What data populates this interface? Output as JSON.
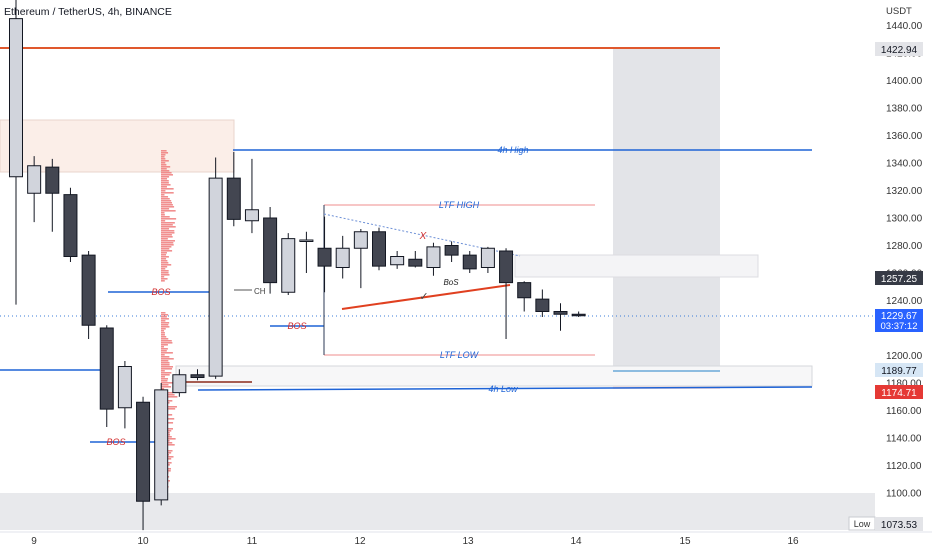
{
  "header": {
    "title": "Ethereum / TetherUS, 4h, BINANCE"
  },
  "axis": {
    "currency": "USDT",
    "low_label": "Low"
  },
  "colors": {
    "bull_body": "#d1d4dc",
    "bear_body": "#434651",
    "wick": "#131722",
    "level_blue": "#1e63d6",
    "level_red": "#e0582d",
    "bos_red": "#d32f2f",
    "ltf_line": "#f0a0a0",
    "zone_peach": "#fbeee8",
    "zone_grey": "#e6e7ea",
    "target_green": "#ffffff"
  },
  "chart_data": {
    "type": "candlestick",
    "symbol": "Ethereum / TetherUS",
    "interval": "4h",
    "exchange": "BINANCE",
    "ylim": [
      1065,
      1455
    ],
    "y_ticks": [
      1100,
      1120,
      1140,
      1160,
      1180,
      1200,
      1220,
      1240,
      1260,
      1280,
      1300,
      1320,
      1340,
      1360,
      1380,
      1400,
      1420,
      1440
    ],
    "x_ticks": [
      "9",
      "10",
      "11",
      "12",
      "13",
      "14",
      "15",
      "16"
    ],
    "candles": [
      {
        "o": 1330,
        "h": 1460,
        "l": 1237,
        "c": 1445
      },
      {
        "o": 1318,
        "h": 1345,
        "l": 1297,
        "c": 1338
      },
      {
        "o": 1337,
        "h": 1343,
        "l": 1290,
        "c": 1318
      },
      {
        "o": 1317,
        "h": 1322,
        "l": 1268,
        "c": 1272
      },
      {
        "o": 1273,
        "h": 1276,
        "l": 1212,
        "c": 1222
      },
      {
        "o": 1220,
        "h": 1222,
        "l": 1148,
        "c": 1161
      },
      {
        "o": 1162,
        "h": 1196,
        "l": 1147,
        "c": 1192
      },
      {
        "o": 1166,
        "h": 1170,
        "l": 1073,
        "c": 1094
      },
      {
        "o": 1095,
        "h": 1180,
        "l": 1091,
        "c": 1175
      },
      {
        "o": 1173,
        "h": 1190,
        "l": 1170,
        "c": 1186
      },
      {
        "o": 1186,
        "h": 1190,
        "l": 1182,
        "c": 1184
      },
      {
        "o": 1185,
        "h": 1344,
        "l": 1183,
        "c": 1329
      },
      {
        "o": 1329,
        "h": 1348,
        "l": 1294,
        "c": 1299
      },
      {
        "o": 1298,
        "h": 1343,
        "l": 1289,
        "c": 1306
      },
      {
        "o": 1300,
        "h": 1308,
        "l": 1245,
        "c": 1253
      },
      {
        "o": 1246,
        "h": 1289,
        "l": 1244,
        "c": 1285
      },
      {
        "o": 1283,
        "h": 1290,
        "l": 1260,
        "c": 1284
      },
      {
        "o": 1278,
        "h": 1301,
        "l": 1246,
        "c": 1265
      },
      {
        "o": 1264,
        "h": 1287,
        "l": 1256,
        "c": 1278
      },
      {
        "o": 1278,
        "h": 1292,
        "l": 1249,
        "c": 1290
      },
      {
        "o": 1290,
        "h": 1293,
        "l": 1262,
        "c": 1265
      },
      {
        "o": 1266,
        "h": 1276,
        "l": 1263,
        "c": 1272
      },
      {
        "o": 1270,
        "h": 1276,
        "l": 1264,
        "c": 1265
      },
      {
        "o": 1264,
        "h": 1282,
        "l": 1258,
        "c": 1279
      },
      {
        "o": 1280,
        "h": 1283,
        "l": 1268,
        "c": 1273
      },
      {
        "o": 1273,
        "h": 1276,
        "l": 1260,
        "c": 1263
      },
      {
        "o": 1264,
        "h": 1279,
        "l": 1260,
        "c": 1278
      },
      {
        "o": 1276,
        "h": 1278,
        "l": 1212,
        "c": 1253
      },
      {
        "o": 1253,
        "h": 1254,
        "l": 1232,
        "c": 1242
      },
      {
        "o": 1241,
        "h": 1248,
        "l": 1228,
        "c": 1232
      },
      {
        "o": 1232,
        "h": 1238,
        "l": 1218,
        "c": 1230
      },
      {
        "o": 1230,
        "h": 1232,
        "l": 1228,
        "c": 1229.67
      }
    ],
    "levels": [
      {
        "label": "4h High",
        "y": 1349
      },
      {
        "label": "LTF HIGH",
        "y": 1309
      },
      {
        "label": "LTF LOW",
        "y": 1201
      },
      {
        "label": "4h Low",
        "y": 1176
      },
      {
        "label": "",
        "y": 1422.94
      }
    ],
    "annotations": [
      "BOS",
      "BOS",
      "BOS",
      "BoS",
      "X",
      "✓",
      "CH"
    ],
    "price_labels": [
      {
        "value": "1422.94"
      },
      {
        "value": "1257.25"
      },
      {
        "value": "1229.67",
        "countdown": "03:37:12"
      },
      {
        "value": "1189.77"
      },
      {
        "value": "1174.71"
      },
      {
        "value": "1073.53"
      }
    ]
  }
}
